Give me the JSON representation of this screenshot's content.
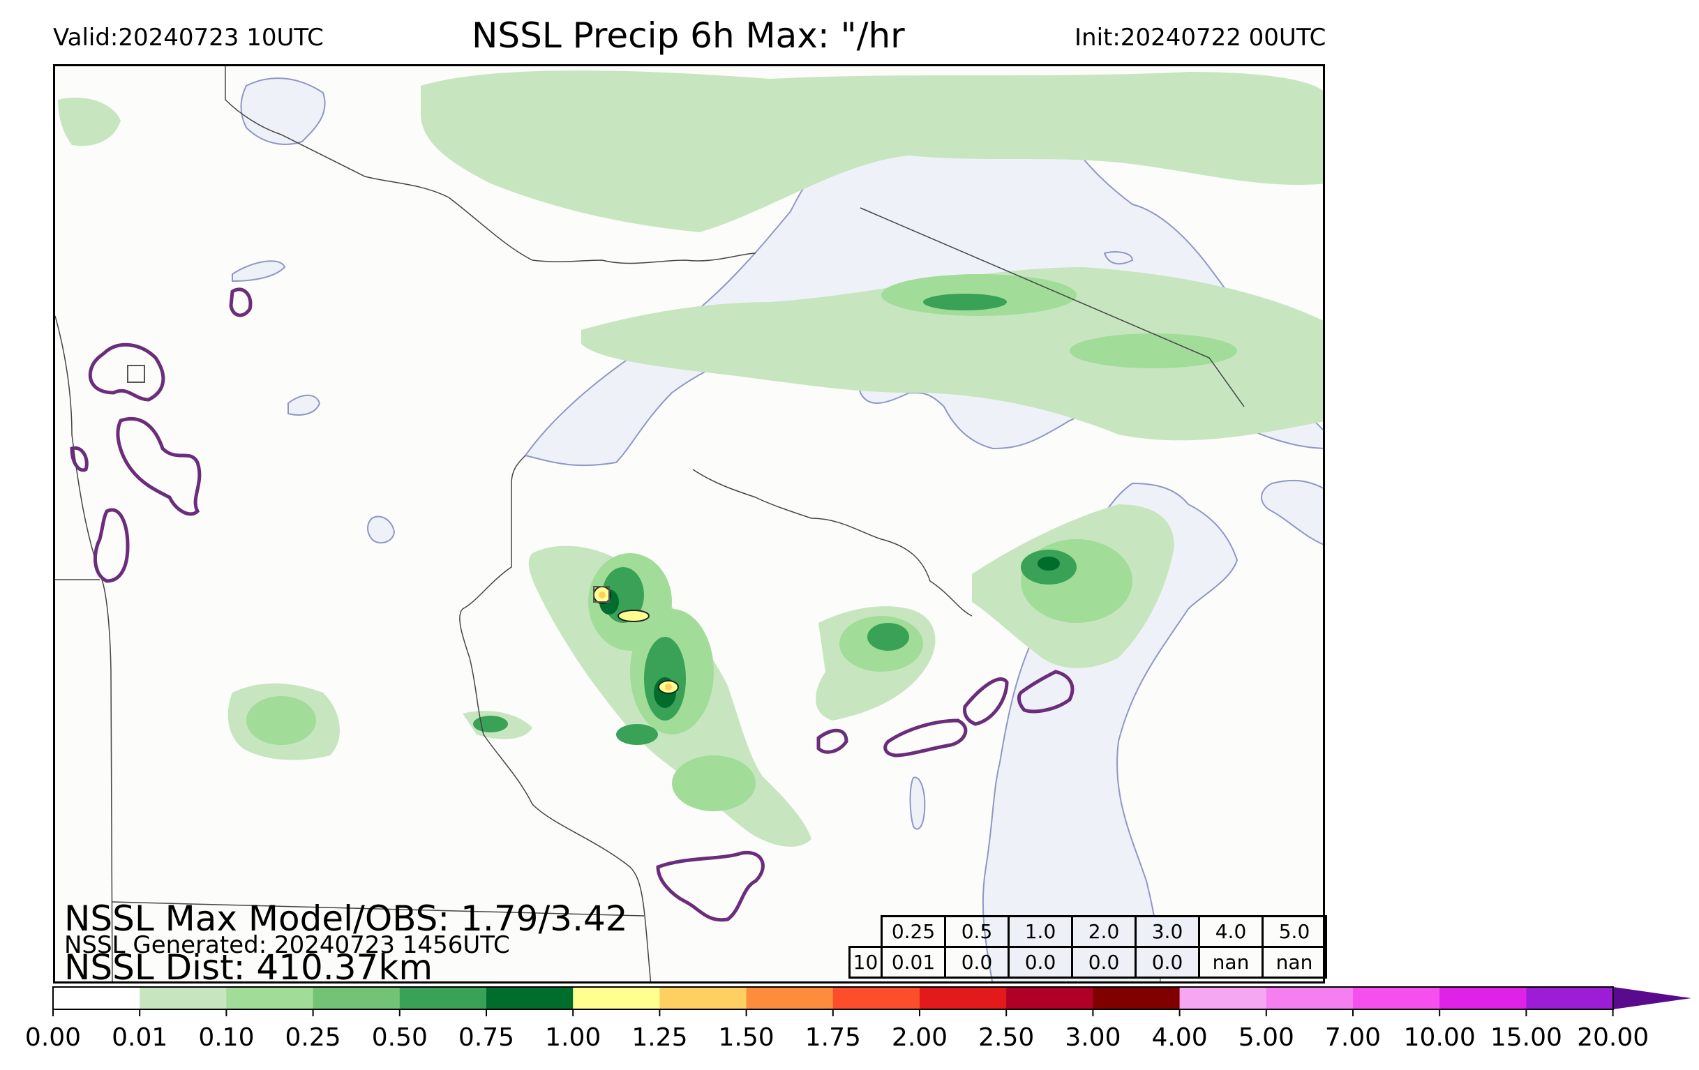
{
  "header": {
    "valid": "Valid:20240723 10UTC",
    "title": "NSSL Precip 6h Max: \"/hr",
    "init": "Init:20240722 00UTC"
  },
  "stats": {
    "max_model_obs": "NSSL Max Model/OBS: 1.79/3.42",
    "generated": "NSSL Generated: 20240723 1456UTC",
    "dist": "NSSL Dist: 410.37km"
  },
  "threshold_table": {
    "header_row": [
      "0.25",
      "0.5",
      "1.0",
      "2.0",
      "3.0",
      "4.0",
      "5.0"
    ],
    "row_label": "10",
    "value_row": [
      "0.01",
      "0.0",
      "0.0",
      "0.0",
      "0.0",
      "nan",
      "nan"
    ]
  },
  "colorbar": {
    "levels": [
      "0.00",
      "0.01",
      "0.10",
      "0.25",
      "0.50",
      "0.75",
      "1.00",
      "1.25",
      "1.50",
      "1.75",
      "2.00",
      "2.50",
      "3.00",
      "4.00",
      "5.00",
      "7.00",
      "10.00",
      "15.00",
      "20.00"
    ],
    "colors": [
      "#ffffff",
      "#c7e6c0",
      "#a1dc99",
      "#73c376",
      "#39a256",
      "#006d2c",
      "#ffff8f",
      "#fed062",
      "#fd8d3c",
      "#fc4e2a",
      "#e31a1c",
      "#b10026",
      "#800000",
      "#f7a6f2",
      "#f57ef0",
      "#f550ee",
      "#e021e8",
      "#9d1cd6",
      "#5a0a8c"
    ]
  },
  "map_colors": {
    "water": "#eef2f8",
    "land": "#fcfcfb",
    "obs_contour": "#6b2d7b",
    "border": "#444444"
  }
}
